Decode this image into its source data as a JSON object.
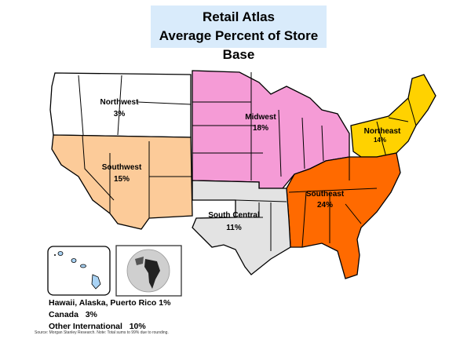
{
  "title": {
    "line1": "Retail Atlas",
    "line2": "Average Percent of Store Base"
  },
  "regions": [
    {
      "name": "Northwest",
      "value": "3%",
      "color": "#ffffff"
    },
    {
      "name": "Southwest",
      "value": "15%",
      "color": "#fccb99"
    },
    {
      "name": "Midwest",
      "value": "18%",
      "color": "#f59bd6"
    },
    {
      "name": "Northeast",
      "value": "14%",
      "color": "#ffd200"
    },
    {
      "name": "Southeast",
      "value": "24%",
      "color": "#ff6a00"
    },
    {
      "name": "South Central",
      "value": "11%",
      "color": "#e3e3e3"
    }
  ],
  "insets": {
    "hawaii_color": "#a9d3f5",
    "globe": "globe-icon"
  },
  "notes": [
    {
      "label": "Hawaii, Alaska, Puerto Rico",
      "value": "1%"
    },
    {
      "label": "Canada",
      "value": "3%"
    },
    {
      "label": "Other International",
      "value": "10%"
    }
  ],
  "source": "Source: Morgan Stanley Research. Note: Total sums to 99% due to rounding."
}
